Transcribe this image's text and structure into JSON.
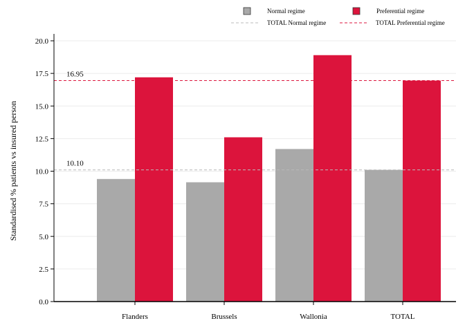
{
  "chart_data": {
    "type": "bar",
    "categories": [
      "Flanders",
      "Brussels",
      "Wallonia",
      "TOTAL"
    ],
    "series": [
      {
        "name": "Normal regime",
        "values": [
          9.4,
          9.15,
          11.7,
          10.1
        ],
        "color": "#a9a9a9"
      },
      {
        "name": "Preferential regime",
        "values": [
          17.2,
          12.6,
          18.9,
          16.95
        ],
        "color": "#dc143c"
      }
    ],
    "reference_lines": [
      {
        "name": "TOTAL Normal regime",
        "value": 10.1,
        "label": "10.10",
        "color": "#bbbbbb"
      },
      {
        "name": "TOTAL Preferential regime",
        "value": 16.95,
        "label": "16.95",
        "color": "#dc143c"
      }
    ],
    "title": "",
    "xlabel": "",
    "ylabel": "Standardised % patients vs insured person",
    "ylim": [
      0,
      20
    ],
    "yticks": [
      "0.0",
      "2.5",
      "5.0",
      "7.5",
      "10.0",
      "12.5",
      "15.0",
      "17.5",
      "20.0"
    ],
    "grid": "horizontal",
    "legend_position": "top"
  }
}
